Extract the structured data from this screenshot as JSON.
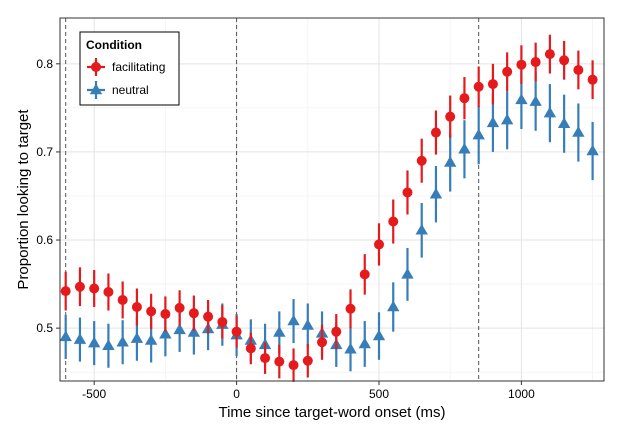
{
  "chart_data": {
    "type": "scatter",
    "xlabel": "Time since target-word onset (ms)",
    "ylabel": "Proportion looking to target",
    "xlim": [
      -620,
      1290
    ],
    "ylim": [
      0.44,
      0.852
    ],
    "x_ticks": [
      -500,
      0,
      500,
      1000
    ],
    "y_ticks": [
      0.5,
      0.6,
      0.7,
      0.8
    ],
    "x_tick_labels": [
      "-500",
      "0",
      "500",
      "1000"
    ],
    "y_tick_labels": [
      "0.5",
      "0.6",
      "0.7",
      "0.8"
    ],
    "grid": true,
    "reference_lines_x": [
      -600,
      0,
      850
    ],
    "legend": {
      "title": "Condition",
      "position": "top-left"
    },
    "x": [
      -600,
      -550,
      -500,
      -450,
      -400,
      -350,
      -300,
      -250,
      -200,
      -150,
      -100,
      -50,
      0,
      50,
      100,
      150,
      200,
      250,
      300,
      350,
      400,
      450,
      500,
      550,
      600,
      650,
      700,
      750,
      800,
      850,
      900,
      950,
      1000,
      1050,
      1100,
      1150,
      1200,
      1250
    ],
    "series": [
      {
        "name": "facilitating",
        "color": "#e41a1c",
        "marker": "circle",
        "y": [
          0.542,
          0.547,
          0.545,
          0.541,
          0.532,
          0.524,
          0.519,
          0.516,
          0.523,
          0.517,
          0.513,
          0.507,
          0.496,
          0.477,
          0.466,
          0.462,
          0.458,
          0.463,
          0.484,
          0.496,
          0.522,
          0.561,
          0.595,
          0.621,
          0.654,
          0.69,
          0.722,
          0.74,
          0.761,
          0.774,
          0.777,
          0.791,
          0.799,
          0.802,
          0.811,
          0.804,
          0.793,
          0.782
        ],
        "err": [
          0.022,
          0.022,
          0.021,
          0.021,
          0.021,
          0.021,
          0.02,
          0.02,
          0.02,
          0.02,
          0.019,
          0.019,
          0.018,
          0.018,
          0.018,
          0.019,
          0.019,
          0.019,
          0.02,
          0.02,
          0.022,
          0.023,
          0.024,
          0.025,
          0.025,
          0.025,
          0.025,
          0.024,
          0.024,
          0.023,
          0.023,
          0.022,
          0.022,
          0.022,
          0.022,
          0.022,
          0.022,
          0.022
        ]
      },
      {
        "name": "neutral",
        "color": "#377eb8",
        "marker": "triangle",
        "y": [
          0.49,
          0.487,
          0.483,
          0.48,
          0.484,
          0.488,
          0.486,
          0.493,
          0.498,
          0.495,
          0.499,
          0.504,
          0.492,
          0.486,
          0.481,
          0.495,
          0.508,
          0.503,
          0.494,
          0.481,
          0.476,
          0.482,
          0.491,
          0.524,
          0.561,
          0.611,
          0.652,
          0.688,
          0.703,
          0.719,
          0.733,
          0.736,
          0.759,
          0.757,
          0.744,
          0.732,
          0.722,
          0.701
        ],
        "err": [
          0.025,
          0.025,
          0.025,
          0.025,
          0.025,
          0.025,
          0.025,
          0.025,
          0.025,
          0.025,
          0.024,
          0.024,
          0.024,
          0.024,
          0.024,
          0.024,
          0.025,
          0.025,
          0.025,
          0.025,
          0.025,
          0.026,
          0.027,
          0.028,
          0.03,
          0.031,
          0.032,
          0.033,
          0.033,
          0.033,
          0.033,
          0.033,
          0.033,
          0.033,
          0.033,
          0.033,
          0.033,
          0.033
        ]
      }
    ]
  }
}
